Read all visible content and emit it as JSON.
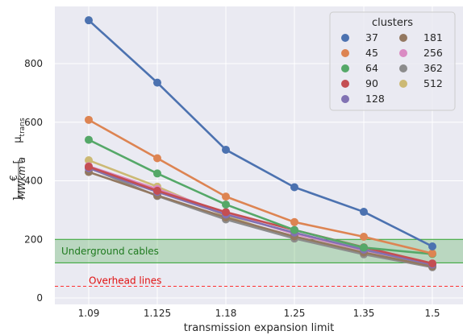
{
  "chart_data": {
    "type": "line",
    "x_tick_labels": [
      "1.09",
      "1.125",
      "1.18",
      "1.25",
      "1.35",
      "1.5"
    ],
    "xlabel": "transmission expansion limit",
    "ylabel_main": "μ",
    "ylabel_sub": "trans",
    "ylabel_unit_num": "€",
    "ylabel_unit_den": "MWkm a",
    "ylim": [
      0,
      970
    ],
    "y_ticks": [
      0,
      200,
      400,
      600,
      800
    ],
    "grid": true,
    "background": "#eaeaf2",
    "legend": {
      "title": "clusters",
      "position": "top-right",
      "columns": 2
    },
    "series": [
      {
        "name": "37",
        "color": "#4c72b0",
        "values": [
          948,
          735,
          506,
          378,
          294,
          176
        ]
      },
      {
        "name": "45",
        "color": "#dd8452",
        "values": [
          608,
          477,
          346,
          259,
          209,
          152
        ]
      },
      {
        "name": "64",
        "color": "#55a868",
        "values": [
          540,
          425,
          319,
          232,
          172,
          150
        ]
      },
      {
        "name": "90",
        "color": "#c44e52",
        "values": [
          448,
          366,
          293,
          232,
          173,
          118
        ]
      },
      {
        "name": "128",
        "color": "#8172b3",
        "values": [
          443,
          362,
          285,
          223,
          165,
          114
        ]
      },
      {
        "name": "181",
        "color": "#937860",
        "values": [
          430,
          350,
          275,
          210,
          155,
          108
        ]
      },
      {
        "name": "256",
        "color": "#da8bc3",
        "values": [
          450,
          372,
          290,
          219,
          163,
          116
        ]
      },
      {
        "name": "362",
        "color": "#8c8c8c",
        "values": [
          445,
          348,
          268,
          203,
          149,
          105
        ]
      },
      {
        "name": "512",
        "color": "#ccb974",
        "values": [
          470,
          380,
          280,
          203,
          155,
          112
        ]
      }
    ],
    "annotations": [
      {
        "type": "band",
        "y0": 120,
        "y1": 200,
        "label": "Underground cables",
        "color": "#2ca02c",
        "label_color": "#1e7a1e"
      },
      {
        "type": "hline",
        "y": 40,
        "label": "Overhead lines",
        "color": "#ff3030",
        "label_color": "#e01010"
      }
    ]
  }
}
